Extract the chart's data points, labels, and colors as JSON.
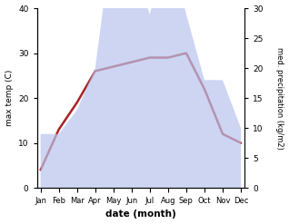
{
  "months": [
    "Jan",
    "Feb",
    "Mar",
    "Apr",
    "May",
    "Jun",
    "Jul",
    "Aug",
    "Sep",
    "Oct",
    "Nov",
    "Dec"
  ],
  "temp": [
    4,
    13,
    19,
    26,
    27,
    28,
    29,
    29,
    30,
    22,
    12,
    10
  ],
  "precip": [
    9,
    9,
    13,
    20,
    43,
    38,
    29,
    41,
    29,
    18,
    18,
    10
  ],
  "temp_color": "#aa2222",
  "precip_fill_color": "#b8c4ee",
  "temp_ylim": [
    0,
    40
  ],
  "precip_ylim": [
    0,
    30
  ],
  "xlabel": "date (month)",
  "ylabel_left": "max temp (C)",
  "ylabel_right": "med. precipitation (kg/m2)",
  "bg_color": "#ffffff"
}
